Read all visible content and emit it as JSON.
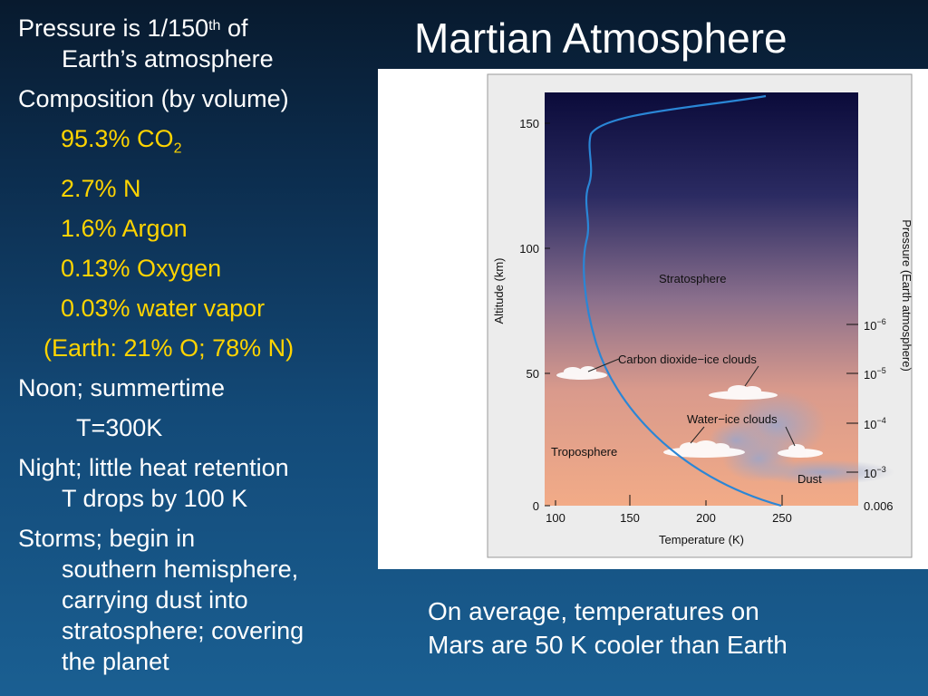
{
  "slide": {
    "title": "Martian Atmosphere",
    "caption_line1": "On average, temperatures on",
    "caption_line2": "Mars are 50 K cooler than Earth"
  },
  "notes": {
    "pressure_a": "Pressure is 1/150",
    "pressure_sup": "th",
    "pressure_b": " of",
    "pressure_c": "Earth’s atmosphere",
    "composition": "Composition (by volume)",
    "co2_a": "95.3% CO",
    "co2_sub": "2",
    "n": "2.7% N",
    "argon": "1.6% Argon",
    "oxygen": "0.13% Oxygen",
    "water": "0.03% water  vapor",
    "earth": "(Earth: 21% O; 78% N)",
    "noon": "Noon; summertime",
    "t300": "T=300K",
    "night_a": "Night; little heat retention",
    "night_b": "T drops by 100 K",
    "storms_a": "Storms; begin in",
    "storms_b": "southern hemisphere,",
    "storms_c": "carrying dust into",
    "storms_d": "stratosphere; covering",
    "storms_e": "the planet"
  },
  "diagram": {
    "y_axis_label": "Altitude (km)",
    "y_ticks": [
      "150",
      "100",
      "50",
      "0"
    ],
    "x_axis_label": "Temperature (K)",
    "x_ticks": [
      "100",
      "150",
      "200",
      "250"
    ],
    "right_axis_label": "Pressure (Earth atmosphere)",
    "pressure_base": "10",
    "pressure_exps": [
      "−6",
      "−5",
      "−4",
      "−3"
    ],
    "pressure_bottom": "0.006",
    "labels": {
      "stratosphere": "Stratosphere",
      "co2_clouds": "Carbon dioxide−ice clouds",
      "water_clouds": "Water−ice clouds",
      "troposphere": "Troposphere",
      "dust": "Dust"
    }
  }
}
